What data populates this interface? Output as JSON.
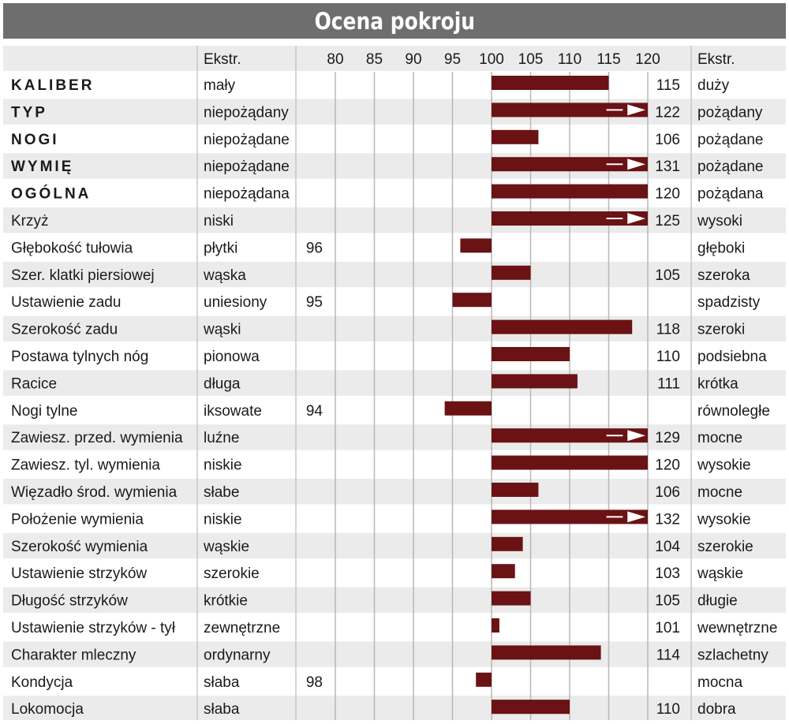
{
  "title": "Ocena pokroju",
  "colors": {
    "bar": "#6a1214",
    "row_alt": "#ebebeb",
    "row": "#ffffff",
    "grid": "#b8b8b8",
    "title_bg": "#6e6e6e"
  },
  "headers": {
    "left_extreme": "Ekstr.",
    "right_extreme": "Ekstr."
  },
  "chart_data": {
    "type": "bar",
    "orientation": "horizontal",
    "baseline": 100,
    "xlim": [
      80,
      120
    ],
    "ticks": [
      "80",
      "85",
      "90",
      "95",
      "100",
      "105",
      "110",
      "115",
      "120"
    ],
    "grid": true,
    "overflow_marker": "arrow at 120 when value exceeds axis maximum",
    "rows": [
      {
        "trait": "KALIBER",
        "bold": true,
        "left": "mały",
        "value": 115,
        "label": "115",
        "right": "duży"
      },
      {
        "trait": "TYP",
        "bold": true,
        "left": "niepożądany",
        "value": 122,
        "label": "122",
        "right": "pożądany"
      },
      {
        "trait": "NOGI",
        "bold": true,
        "left": "niepożądane",
        "value": 106,
        "label": "106",
        "right": "pożądane"
      },
      {
        "trait": "WYMIĘ",
        "bold": true,
        "left": "niepożądane",
        "value": 131,
        "label": "131",
        "right": "pożądane"
      },
      {
        "trait": "OGÓLNA",
        "bold": true,
        "left": "niepożądana",
        "value": 120,
        "label": "120",
        "right": "pożądana"
      },
      {
        "trait": "Krzyż",
        "bold": false,
        "left": "niski",
        "value": 125,
        "label": "125",
        "right": "wysoki"
      },
      {
        "trait": "Głębokość tułowia",
        "bold": false,
        "left": "płytki",
        "value": 96,
        "label": "96",
        "right": "głęboki"
      },
      {
        "trait": "Szer. klatki piersiowej",
        "bold": false,
        "left": "wąska",
        "value": 105,
        "label": "105",
        "right": "szeroka"
      },
      {
        "trait": "Ustawienie zadu",
        "bold": false,
        "left": "uniesiony",
        "value": 95,
        "label": "95",
        "right": "spadzisty"
      },
      {
        "trait": "Szerokość zadu",
        "bold": false,
        "left": "wąski",
        "value": 118,
        "label": "118",
        "right": "szeroki"
      },
      {
        "trait": "Postawa tylnych nóg",
        "bold": false,
        "left": "pionowa",
        "value": 110,
        "label": "110",
        "right": "podsiebna"
      },
      {
        "trait": "Racice",
        "bold": false,
        "left": "długa",
        "value": 111,
        "label": "111",
        "right": "krótka"
      },
      {
        "trait": "Nogi tylne",
        "bold": false,
        "left": "iksowate",
        "value": 94,
        "label": "94",
        "right": "równoległe"
      },
      {
        "trait": "Zawiesz. przed. wymienia",
        "bold": false,
        "left": "luźne",
        "value": 129,
        "label": "129",
        "right": "mocne"
      },
      {
        "trait": "Zawiesz. tyl. wymienia",
        "bold": false,
        "left": "niskie",
        "value": 120,
        "label": "120",
        "right": "wysokie"
      },
      {
        "trait": "Więzadło środ. wymienia",
        "bold": false,
        "left": "słabe",
        "value": 106,
        "label": "106",
        "right": "mocne"
      },
      {
        "trait": "Położenie wymienia",
        "bold": false,
        "left": "niskie",
        "value": 132,
        "label": "132",
        "right": "wysokie"
      },
      {
        "trait": "Szerokość wymienia",
        "bold": false,
        "left": "wąskie",
        "value": 104,
        "label": "104",
        "right": "szerokie"
      },
      {
        "trait": "Ustawienie strzyków",
        "bold": false,
        "left": "szerokie",
        "value": 103,
        "label": "103",
        "right": "wąskie"
      },
      {
        "trait": "Długość strzyków",
        "bold": false,
        "left": "krótkie",
        "value": 105,
        "label": "105",
        "right": "długie"
      },
      {
        "trait": "Ustawienie strzyków - tył",
        "bold": false,
        "left": "zewnętrzne",
        "value": 101,
        "label": "101",
        "right": "wewnętrzne"
      },
      {
        "trait": "Charakter mleczny",
        "bold": false,
        "left": "ordynarny",
        "value": 114,
        "label": "114",
        "right": "szlachetny"
      },
      {
        "trait": "Kondycja",
        "bold": false,
        "left": "słaba",
        "value": 98,
        "label": "98",
        "right": "mocna"
      },
      {
        "trait": "Lokomocja",
        "bold": false,
        "left": "słaba",
        "value": 110,
        "label": "110",
        "right": "dobra"
      }
    ]
  }
}
